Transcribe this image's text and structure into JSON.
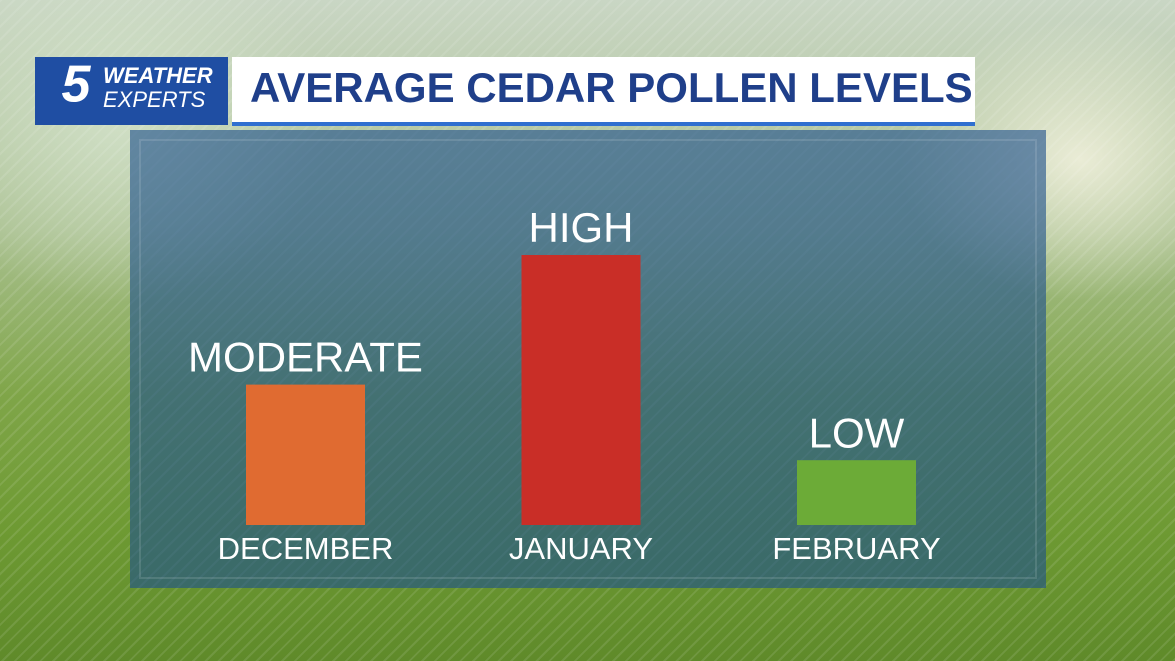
{
  "branding": {
    "number": "5",
    "line1": "WEATHER",
    "line2": "EXPERTS"
  },
  "chart_data": {
    "type": "bar",
    "title": "AVERAGE CEDAR POLLEN LEVELS",
    "categories": [
      "DECEMBER",
      "JANUARY",
      "FEBRUARY"
    ],
    "values": [
      52,
      100,
      24
    ],
    "value_labels": [
      "MODERATE",
      "HIGH",
      "LOW"
    ],
    "colors": [
      "#e06b31",
      "#c92e27",
      "#6cab37"
    ],
    "ylim": [
      0,
      100
    ]
  }
}
